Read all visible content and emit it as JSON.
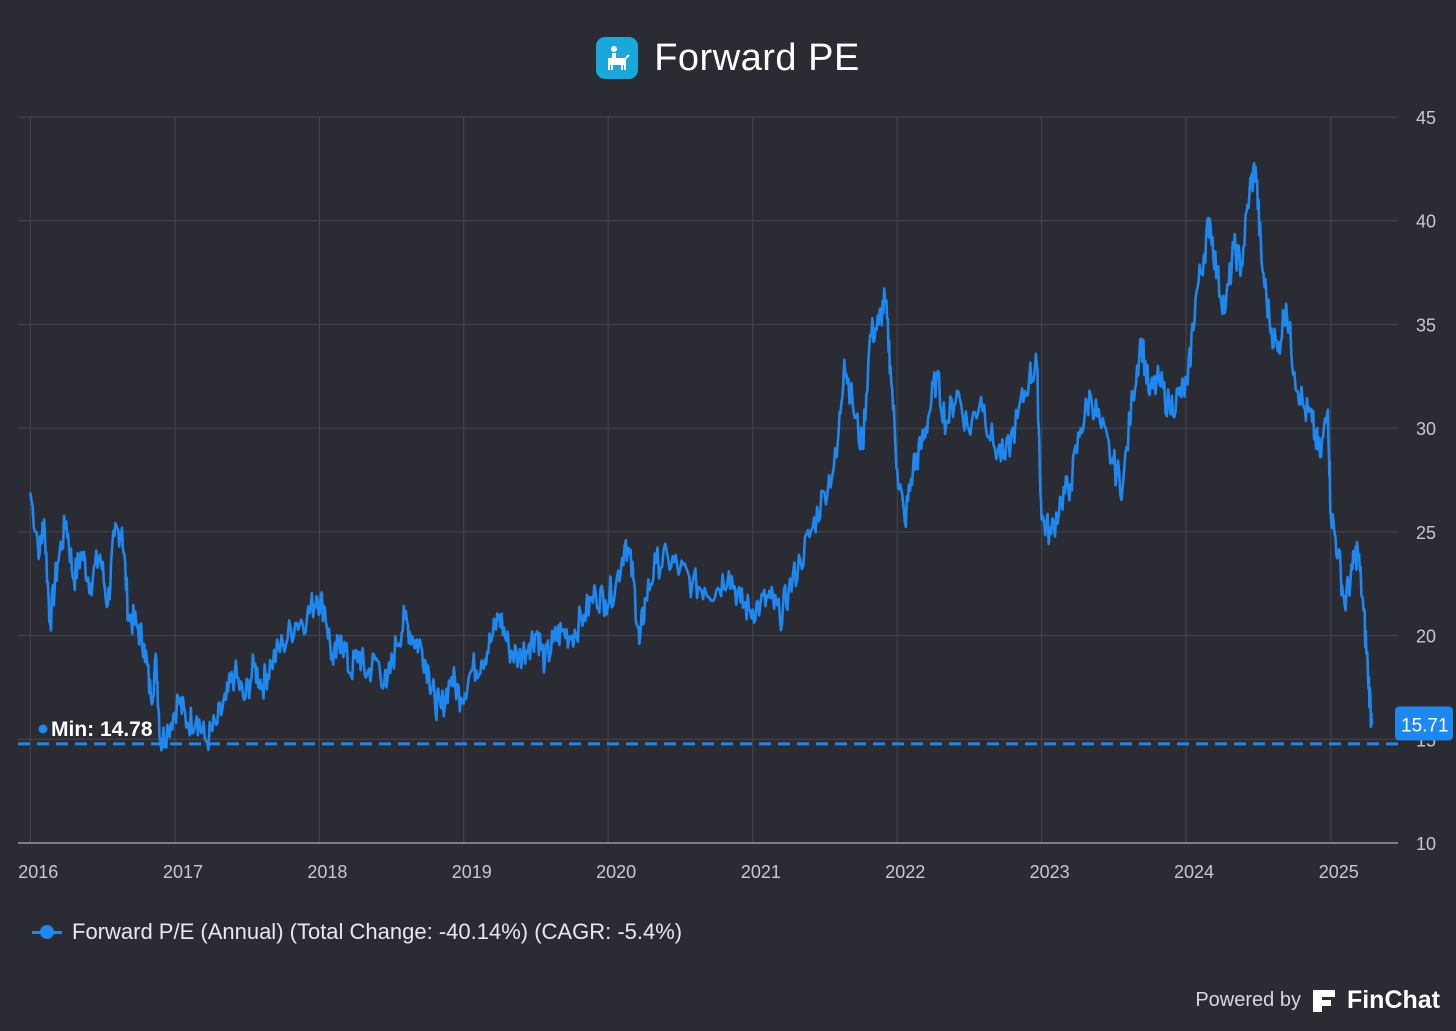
{
  "header": {
    "title": "Forward PE",
    "logo_icon": "company-logo-icon"
  },
  "chart_data": {
    "type": "line",
    "title": "Forward PE",
    "xlabel": "",
    "ylabel": "",
    "x_ticks": [
      "2016",
      "2017",
      "2018",
      "2019",
      "2020",
      "2021",
      "2022",
      "2023",
      "2024",
      "2025"
    ],
    "y_ticks": [
      10,
      15,
      20,
      25,
      30,
      35,
      40,
      45
    ],
    "xlim": [
      "2015-12-01",
      "2025-06-20"
    ],
    "ylim": [
      10,
      45
    ],
    "grid": true,
    "legend_placement": "bottom-left",
    "series": [
      {
        "name": "Forward P/E (Annual) (Total Change: -40.14%) (CAGR: -5.4%)",
        "color": "#1e88f0",
        "points": [
          [
            "2016-01-01",
            26.9
          ],
          [
            "2016-01-25",
            24.0
          ],
          [
            "2016-02-05",
            25.6
          ],
          [
            "2016-02-20",
            20.6
          ],
          [
            "2016-03-10",
            23.5
          ],
          [
            "2016-04-01",
            25.5
          ],
          [
            "2016-04-20",
            22.7
          ],
          [
            "2016-05-10",
            24.0
          ],
          [
            "2016-06-01",
            22.5
          ],
          [
            "2016-06-25",
            23.9
          ],
          [
            "2016-07-15",
            21.5
          ],
          [
            "2016-08-01",
            24.8
          ],
          [
            "2016-08-20",
            25.2
          ],
          [
            "2016-09-05",
            21.0
          ],
          [
            "2016-09-25",
            20.5
          ],
          [
            "2016-10-15",
            19.6
          ],
          [
            "2016-11-01",
            17.0
          ],
          [
            "2016-11-15",
            18.8
          ],
          [
            "2016-11-25",
            14.8
          ],
          [
            "2016-12-15",
            15.6
          ],
          [
            "2017-01-10",
            16.9
          ],
          [
            "2017-02-01",
            15.8
          ],
          [
            "2017-02-25",
            16.1
          ],
          [
            "2017-03-20",
            14.9
          ],
          [
            "2017-04-15",
            15.7
          ],
          [
            "2017-05-10",
            16.9
          ],
          [
            "2017-06-01",
            18.2
          ],
          [
            "2017-06-25",
            16.9
          ],
          [
            "2017-07-20",
            18.5
          ],
          [
            "2017-08-10",
            17.6
          ],
          [
            "2017-09-01",
            18.7
          ],
          [
            "2017-10-01",
            19.6
          ],
          [
            "2017-11-01",
            20.6
          ],
          [
            "2017-12-01",
            20.9
          ],
          [
            "2017-12-25",
            21.9
          ],
          [
            "2018-01-15",
            21.3
          ],
          [
            "2018-02-05",
            18.6
          ],
          [
            "2018-02-25",
            20.0
          ],
          [
            "2018-03-20",
            18.2
          ],
          [
            "2018-04-10",
            19.2
          ],
          [
            "2018-05-01",
            18.1
          ],
          [
            "2018-05-25",
            18.9
          ],
          [
            "2018-06-20",
            17.5
          ],
          [
            "2018-07-15",
            19.6
          ],
          [
            "2018-08-05",
            20.8
          ],
          [
            "2018-08-25",
            19.9
          ],
          [
            "2018-09-15",
            19.5
          ],
          [
            "2018-10-05",
            18.2
          ],
          [
            "2018-10-20",
            16.8
          ],
          [
            "2018-11-05",
            16.5
          ],
          [
            "2018-12-01",
            18.0
          ],
          [
            "2018-12-25",
            17.0
          ],
          [
            "2019-01-20",
            18.3
          ],
          [
            "2019-02-15",
            18.8
          ],
          [
            "2019-03-10",
            19.7
          ],
          [
            "2019-04-01",
            21.0
          ],
          [
            "2019-04-25",
            19.4
          ],
          [
            "2019-05-20",
            18.9
          ],
          [
            "2019-06-15",
            19.6
          ],
          [
            "2019-07-05",
            20.2
          ],
          [
            "2019-07-25",
            18.7
          ],
          [
            "2019-08-15",
            19.7
          ],
          [
            "2019-09-05",
            20.2
          ],
          [
            "2019-10-01",
            20.0
          ],
          [
            "2019-11-01",
            21.0
          ],
          [
            "2019-12-01",
            22.0
          ],
          [
            "2019-12-25",
            21.7
          ],
          [
            "2020-01-20",
            22.4
          ],
          [
            "2020-02-15",
            24.6
          ],
          [
            "2020-03-05",
            22.7
          ],
          [
            "2020-03-20",
            19.6
          ],
          [
            "2020-04-05",
            21.8
          ],
          [
            "2020-05-01",
            23.5
          ],
          [
            "2020-06-01",
            23.7
          ],
          [
            "2020-07-01",
            23.2
          ],
          [
            "2020-08-01",
            22.5
          ],
          [
            "2020-09-01",
            22.3
          ],
          [
            "2020-10-01",
            22.2
          ],
          [
            "2020-11-01",
            23.1
          ],
          [
            "2020-12-01",
            21.6
          ],
          [
            "2020-12-25",
            21.2
          ],
          [
            "2021-01-20",
            21.5
          ],
          [
            "2021-02-15",
            21.8
          ],
          [
            "2021-03-10",
            20.9
          ],
          [
            "2021-04-01",
            22.1
          ],
          [
            "2021-05-01",
            23.6
          ],
          [
            "2021-06-01",
            25.2
          ],
          [
            "2021-07-01",
            26.9
          ],
          [
            "2021-08-01",
            28.6
          ],
          [
            "2021-08-20",
            33.3
          ],
          [
            "2021-09-10",
            31.2
          ],
          [
            "2021-10-05",
            29.0
          ],
          [
            "2021-10-25",
            34.5
          ],
          [
            "2021-11-15",
            35.0
          ],
          [
            "2021-12-01",
            36.2
          ],
          [
            "2021-12-15",
            33.0
          ],
          [
            "2022-01-01",
            28.0
          ],
          [
            "2022-01-20",
            25.5
          ],
          [
            "2022-02-10",
            28.1
          ],
          [
            "2022-03-01",
            29.0
          ],
          [
            "2022-03-20",
            30.5
          ],
          [
            "2022-04-10",
            32.5
          ],
          [
            "2022-05-05",
            30.2
          ],
          [
            "2022-06-01",
            31.8
          ],
          [
            "2022-07-01",
            29.9
          ],
          [
            "2022-08-01",
            31.5
          ],
          [
            "2022-09-01",
            29.2
          ],
          [
            "2022-10-01",
            28.5
          ],
          [
            "2022-11-01",
            30.5
          ],
          [
            "2022-12-01",
            32.5
          ],
          [
            "2022-12-20",
            33.0
          ],
          [
            "2023-01-01",
            25.6
          ],
          [
            "2023-01-25",
            24.9
          ],
          [
            "2023-02-20",
            26.6
          ],
          [
            "2023-03-15",
            27.3
          ],
          [
            "2023-04-10",
            30.0
          ],
          [
            "2023-05-05",
            31.6
          ],
          [
            "2023-06-01",
            30.0
          ],
          [
            "2023-07-01",
            28.3
          ],
          [
            "2023-07-25",
            27.2
          ],
          [
            "2023-08-20",
            31.7
          ],
          [
            "2023-09-10",
            34.3
          ],
          [
            "2023-10-01",
            31.6
          ],
          [
            "2023-10-25",
            32.3
          ],
          [
            "2023-11-20",
            31.0
          ],
          [
            "2023-12-15",
            31.6
          ],
          [
            "2024-01-05",
            32.1
          ],
          [
            "2024-01-25",
            36.2
          ],
          [
            "2024-02-15",
            38.3
          ],
          [
            "2024-03-01",
            40.1
          ],
          [
            "2024-03-20",
            37.3
          ],
          [
            "2024-04-10",
            35.7
          ],
          [
            "2024-05-01",
            38.7
          ],
          [
            "2024-05-20",
            37.8
          ],
          [
            "2024-06-10",
            41.5
          ],
          [
            "2024-06-25",
            42.6
          ],
          [
            "2024-07-10",
            38.1
          ],
          [
            "2024-07-30",
            35.2
          ],
          [
            "2024-08-20",
            33.7
          ],
          [
            "2024-09-10",
            36.0
          ],
          [
            "2024-10-01",
            32.7
          ],
          [
            "2024-10-25",
            31.0
          ],
          [
            "2024-11-15",
            30.3
          ],
          [
            "2024-12-05",
            28.6
          ],
          [
            "2024-12-25",
            30.9
          ],
          [
            "2025-01-01",
            25.9
          ],
          [
            "2025-01-20",
            24.0
          ],
          [
            "2025-02-05",
            21.5
          ],
          [
            "2025-02-25",
            23.2
          ],
          [
            "2025-03-10",
            24.2
          ],
          [
            "2025-03-25",
            21.2
          ],
          [
            "2025-04-05",
            18.3
          ],
          [
            "2025-04-15",
            15.7
          ]
        ]
      }
    ],
    "annotations": {
      "min_label": "Min: 14.78",
      "min_value": 14.78,
      "last_value_label": "15.71",
      "last_value": 15.71
    },
    "colors": {
      "background": "#2a2b33",
      "line": "#1e88f0",
      "grid": "#464852",
      "tick_text": "#c8c8d0"
    }
  },
  "legend": {
    "label": "Forward P/E (Annual) (Total Change: -40.14%) (CAGR: -5.4%)"
  },
  "footer": {
    "powered_by": "Powered by",
    "brand": "FinChat",
    "brand_icon": "finchat-logo-icon"
  }
}
